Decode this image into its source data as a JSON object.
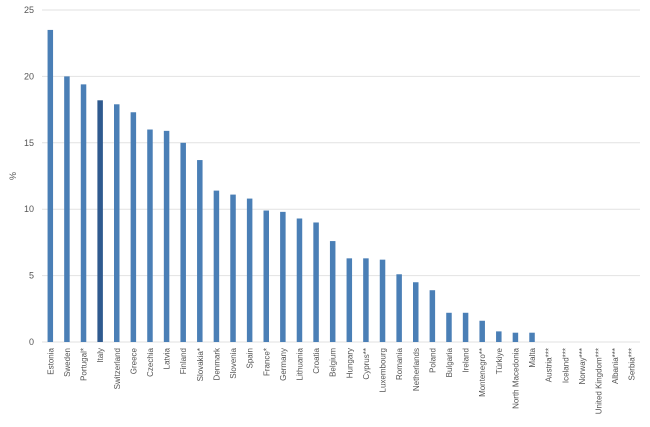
{
  "chart_data": {
    "type": "bar",
    "title": "",
    "xlabel": "",
    "ylabel": "%",
    "ylim": [
      0,
      25
    ],
    "yticks": [
      0,
      5,
      10,
      15,
      20,
      25
    ],
    "grid": true,
    "legend": "none",
    "bar_color": "#4a7fb6",
    "highlight_color": "#2f5a8f",
    "highlight_category": "Italy",
    "categories": [
      "Estonia",
      "Sweden",
      "Portugal*",
      "Italy",
      "Switzerland",
      "Greece",
      "Czechia",
      "Latvia",
      "Finland",
      "Slovakia*",
      "Denmark",
      "Slovenia",
      "Spain",
      "France*",
      "Germany",
      "Lithuania",
      "Croatia",
      "Belgium",
      "Hungary",
      "Cyprus**",
      "Luxembourg",
      "Romania",
      "Netherlands",
      "Poland",
      "Bulgaria",
      "Ireland",
      "Montenegro**",
      "Türkiye",
      "North Macedonia",
      "Malta",
      "Austria***",
      "Iceland***",
      "Norway***",
      "United Kingdom***",
      "Albania***",
      "Serbia***"
    ],
    "values": [
      23.5,
      20.0,
      19.4,
      18.2,
      17.9,
      17.3,
      16.0,
      15.9,
      15.0,
      13.7,
      11.4,
      11.1,
      10.8,
      9.9,
      9.8,
      9.3,
      9.0,
      7.6,
      6.3,
      6.3,
      6.2,
      5.1,
      4.5,
      3.9,
      2.2,
      2.2,
      1.6,
      0.8,
      0.7,
      0.7,
      0,
      0,
      0,
      0,
      0,
      0
    ]
  }
}
